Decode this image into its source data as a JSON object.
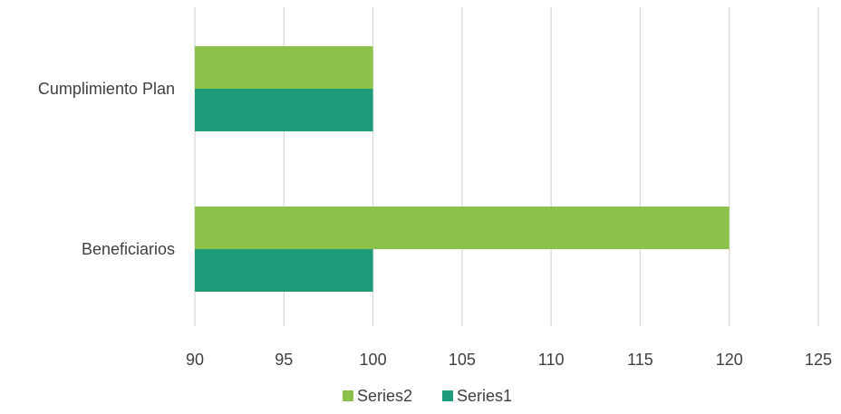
{
  "chart_data": {
    "type": "bar",
    "orientation": "horizontal",
    "categories": [
      "Cumplimiento Plan",
      "Beneficiarios"
    ],
    "series": [
      {
        "name": "Series2",
        "values": [
          100,
          120
        ],
        "color": "#8bc34a"
      },
      {
        "name": "Series1",
        "values": [
          100,
          100
        ],
        "color": "#1e9b78"
      }
    ],
    "xlim": [
      90,
      125
    ],
    "x_ticks": [
      90,
      95,
      100,
      105,
      110,
      115,
      120,
      125
    ],
    "grid": true,
    "legend": {
      "position": "bottom",
      "entries": [
        "Series2",
        "Series1"
      ]
    }
  }
}
